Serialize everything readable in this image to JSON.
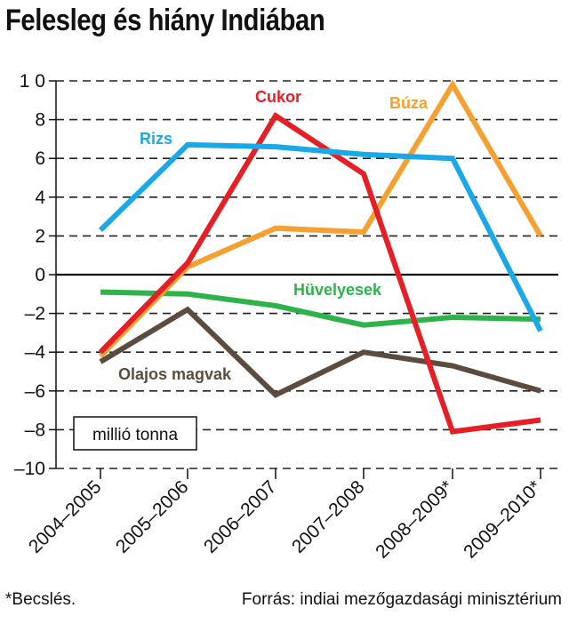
{
  "title": "Felesleg és hiány Indiában",
  "unit_label": "millió tonna",
  "footnote": "*Becslés.",
  "source": "Forrás: indiai mezőgazdasági minisztérium",
  "chart_data": {
    "type": "line",
    "title": "Felesleg és hiány Indiában",
    "ylabel": "millió tonna",
    "ylim": [
      -10,
      10
    ],
    "yticks": [
      10,
      8,
      6,
      4,
      2,
      0,
      -2,
      -4,
      -6,
      -8,
      -10
    ],
    "ytick_labels": [
      "1 0",
      "8",
      "6",
      "4",
      "2",
      "0",
      "–2",
      "–4",
      "–6",
      "–8",
      "–10"
    ],
    "categories": [
      "2004–2005",
      "2005–2006",
      "2006–2007",
      "2007–2008",
      "2008–2009*",
      "2009–2010*"
    ],
    "grid": true,
    "series": [
      {
        "name": "Rizs",
        "color": "#1ba8e6",
        "values": [
          2.3,
          6.7,
          6.6,
          6.2,
          6.0,
          -2.9
        ]
      },
      {
        "name": "Cukor",
        "color": "#e51f25",
        "values": [
          -4.0,
          0.6,
          8.2,
          5.2,
          -8.1,
          -7.5
        ]
      },
      {
        "name": "Búza",
        "color": "#f6a031",
        "values": [
          -4.2,
          0.4,
          2.4,
          2.2,
          9.8,
          2.0
        ]
      },
      {
        "name": "Hüvelyesek",
        "color": "#2db34a",
        "values": [
          -0.9,
          -1.0,
          -1.6,
          -2.6,
          -2.2,
          -2.3
        ]
      },
      {
        "name": "Olajos magvak",
        "color": "#5c4b3f",
        "values": [
          -4.5,
          -1.8,
          -6.2,
          -4.0,
          -4.7,
          -6.0
        ]
      }
    ]
  }
}
